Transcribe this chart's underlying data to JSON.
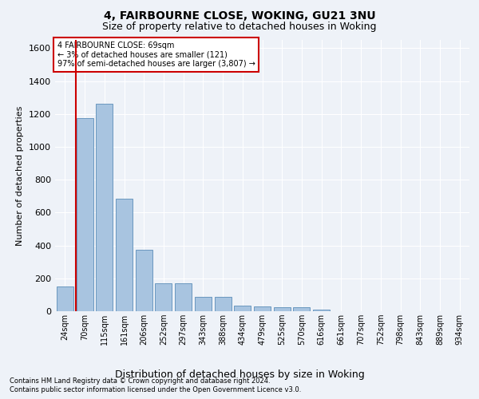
{
  "title_line1": "4, FAIRBOURNE CLOSE, WOKING, GU21 3NU",
  "title_line2": "Size of property relative to detached houses in Woking",
  "xlabel": "Distribution of detached houses by size in Woking",
  "ylabel": "Number of detached properties",
  "categories": [
    "24sqm",
    "70sqm",
    "115sqm",
    "161sqm",
    "206sqm",
    "252sqm",
    "297sqm",
    "343sqm",
    "388sqm",
    "434sqm",
    "479sqm",
    "525sqm",
    "570sqm",
    "616sqm",
    "661sqm",
    "707sqm",
    "752sqm",
    "798sqm",
    "843sqm",
    "889sqm",
    "934sqm"
  ],
  "values": [
    150,
    1175,
    1260,
    685,
    375,
    170,
    170,
    85,
    85,
    35,
    30,
    22,
    22,
    12,
    0,
    0,
    0,
    0,
    0,
    0,
    0
  ],
  "bar_color": "#a8c4e0",
  "bar_edge_color": "#5b8db8",
  "red_line_x": 0.57,
  "ylim": [
    0,
    1650
  ],
  "yticks": [
    0,
    200,
    400,
    600,
    800,
    1000,
    1200,
    1400,
    1600
  ],
  "annotation_title": "4 FAIRBOURNE CLOSE: 69sqm",
  "annotation_line2": "← 3% of detached houses are smaller (121)",
  "annotation_line3": "97% of semi-detached houses are larger (3,807) →",
  "footer_line1": "Contains HM Land Registry data © Crown copyright and database right 2024.",
  "footer_line2": "Contains public sector information licensed under the Open Government Licence v3.0.",
  "bg_color": "#eef2f8",
  "plot_bg_color": "#eef2f8",
  "grid_color": "#ffffff",
  "title1_fontsize": 10,
  "title2_fontsize": 9,
  "label_fontsize": 8,
  "tick_fontsize": 7,
  "footer_fontsize": 6,
  "annotation_fontsize": 7,
  "annotation_box_color": "#ffffff",
  "annotation_box_edge": "#cc0000",
  "red_line_color": "#cc0000"
}
